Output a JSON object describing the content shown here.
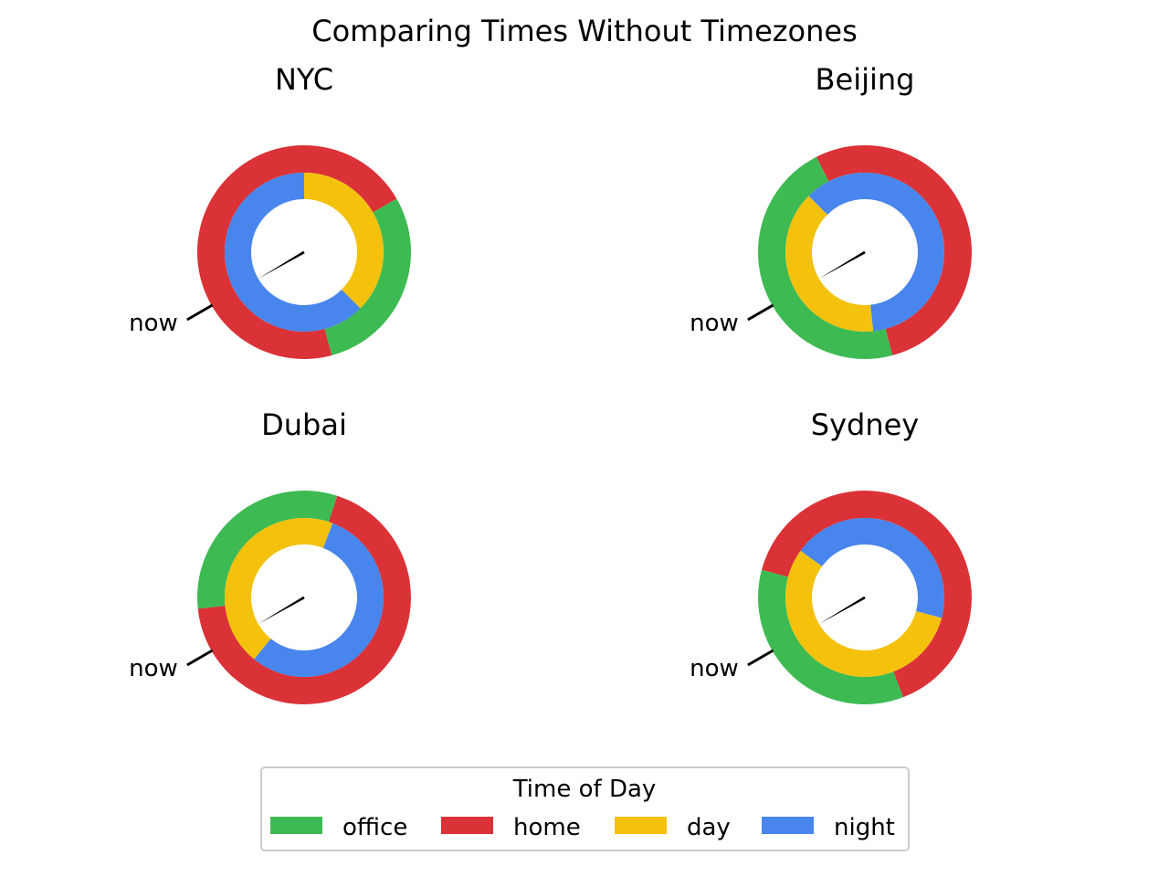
{
  "chart_data": {
    "type": "pie",
    "title": "Comparing Times Without Timezones",
    "legend": {
      "title": "Time of Day",
      "placement": "bottom-center",
      "entries": [
        {
          "name": "office",
          "color": "#3DBA52"
        },
        {
          "name": "home",
          "color": "#DA3237"
        },
        {
          "name": "day",
          "color": "#F4C20D"
        },
        {
          "name": "night",
          "color": "#4885ED"
        }
      ]
    },
    "now_label": "now",
    "now_angle_deg": 210,
    "start_angle_deg": 90,
    "direction": "clockwise",
    "rings": {
      "outer": "office/home",
      "inner": "day/night"
    },
    "cities": [
      {
        "name": "NYC",
        "outer": [
          {
            "cat": "home",
            "start": 0,
            "end": 2
          },
          {
            "cat": "office",
            "start": 2,
            "end": 5.5
          },
          {
            "cat": "home",
            "start": 5.5,
            "end": 12
          }
        ],
        "inner": [
          {
            "cat": "day",
            "start": 0,
            "end": 4.5
          },
          {
            "cat": "night",
            "start": 4.5,
            "end": 12
          }
        ]
      },
      {
        "name": "Beijing",
        "outer": [
          {
            "cat": "home",
            "start": 0,
            "end": 5.5
          },
          {
            "cat": "office",
            "start": 5.5,
            "end": 11.1
          },
          {
            "cat": "home",
            "start": 11.1,
            "end": 12
          }
        ],
        "inner": [
          {
            "cat": "night",
            "start": 0,
            "end": 5.8
          },
          {
            "cat": "day",
            "start": 5.8,
            "end": 10.5
          },
          {
            "cat": "night",
            "start": 10.5,
            "end": 12
          }
        ]
      },
      {
        "name": "Dubai",
        "outer": [
          {
            "cat": "home",
            "start": 0.6,
            "end": 8.8
          },
          {
            "cat": "office",
            "start": 8.8,
            "end": 12.6
          }
        ],
        "inner": [
          {
            "cat": "night",
            "start": 0.7,
            "end": 7.3
          },
          {
            "cat": "day",
            "start": 7.3,
            "end": 12.7
          }
        ]
      },
      {
        "name": "Sydney",
        "outer": [
          {
            "cat": "home",
            "start": 0,
            "end": 5.3
          },
          {
            "cat": "office",
            "start": 5.3,
            "end": 9.5
          },
          {
            "cat": "home",
            "start": 9.5,
            "end": 12
          }
        ],
        "inner": [
          {
            "cat": "night",
            "start": 0,
            "end": 3.5
          },
          {
            "cat": "day",
            "start": 3.5,
            "end": 10.2
          },
          {
            "cat": "night",
            "start": 10.2,
            "end": 12
          }
        ]
      }
    ],
    "colors": {
      "office": "#3DBA52",
      "home": "#DA3237",
      "day": "#F4C20D",
      "night": "#4885ED",
      "hand": "#000000",
      "legend_border": "#CCCCCC"
    }
  }
}
